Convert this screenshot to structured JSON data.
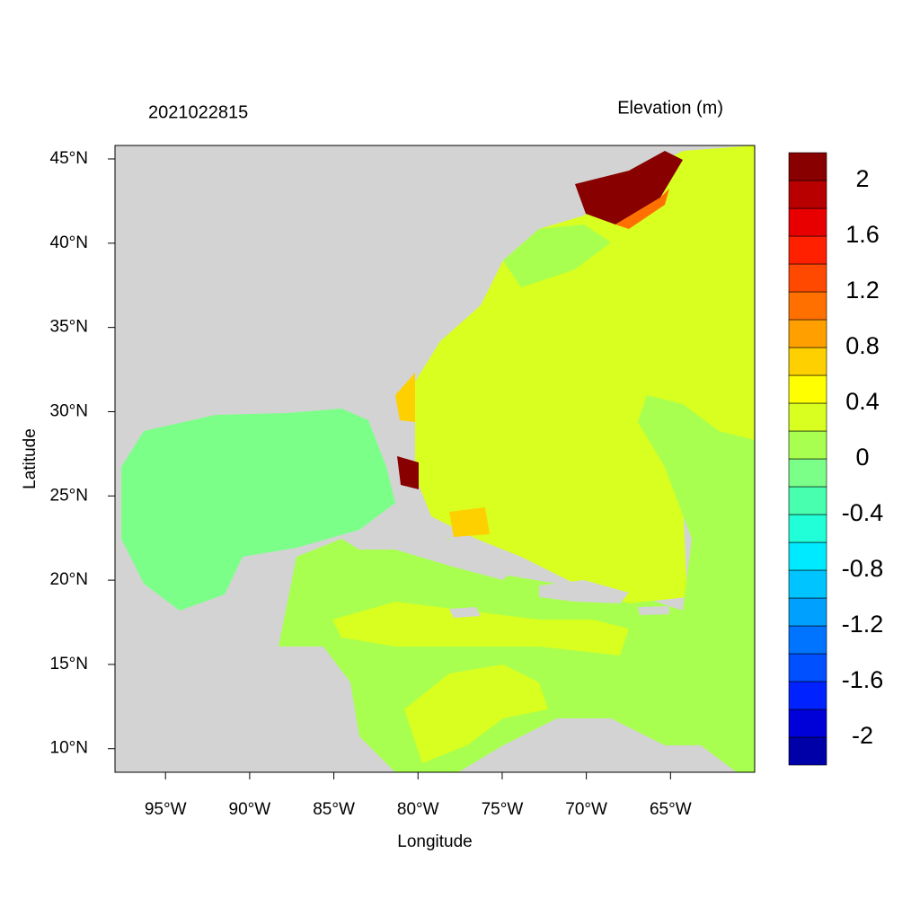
{
  "map": {
    "title": "2021022815",
    "variable": "Elevation (m)",
    "x_label": "Longitude",
    "y_label": "Latitude",
    "xlim": [
      -98,
      -60
    ],
    "ylim": [
      8.6,
      45.8
    ],
    "xticks": [
      {
        "value": -95,
        "label": "95°W"
      },
      {
        "value": -90,
        "label": "90°W"
      },
      {
        "value": -85,
        "label": "85°W"
      },
      {
        "value": -80,
        "label": "80°W"
      },
      {
        "value": -75,
        "label": "75°W"
      },
      {
        "value": -70,
        "label": "70°W"
      },
      {
        "value": -65,
        "label": "65°W"
      }
    ],
    "yticks": [
      {
        "value": 10,
        "label": "10°N"
      },
      {
        "value": 15,
        "label": "15°N"
      },
      {
        "value": 20,
        "label": "20°N"
      },
      {
        "value": 25,
        "label": "25°N"
      },
      {
        "value": 30,
        "label": "30°N"
      },
      {
        "value": 35,
        "label": "35°N"
      },
      {
        "value": 40,
        "label": "40°N"
      },
      {
        "value": 45,
        "label": "45°N"
      }
    ],
    "colorbar": {
      "lim": [
        -2.2,
        2.2
      ],
      "ticks": [
        -2,
        -1.6,
        -1.2,
        -0.8,
        -0.4,
        0,
        0.4,
        0.8,
        1.2,
        1.6,
        2
      ],
      "colors": [
        "#0000a8",
        "#0000d8",
        "#0022ff",
        "#0050ff",
        "#0074ff",
        "#00a0ff",
        "#00c4ff",
        "#00eaff",
        "#20ffd8",
        "#48ffb0",
        "#7cff88",
        "#a8ff50",
        "#d8ff20",
        "#ffff00",
        "#ffd000",
        "#ffa000",
        "#ff7000",
        "#ff4800",
        "#ff2000",
        "#e80000",
        "#b80000",
        "#880000"
      ]
    }
  }
}
